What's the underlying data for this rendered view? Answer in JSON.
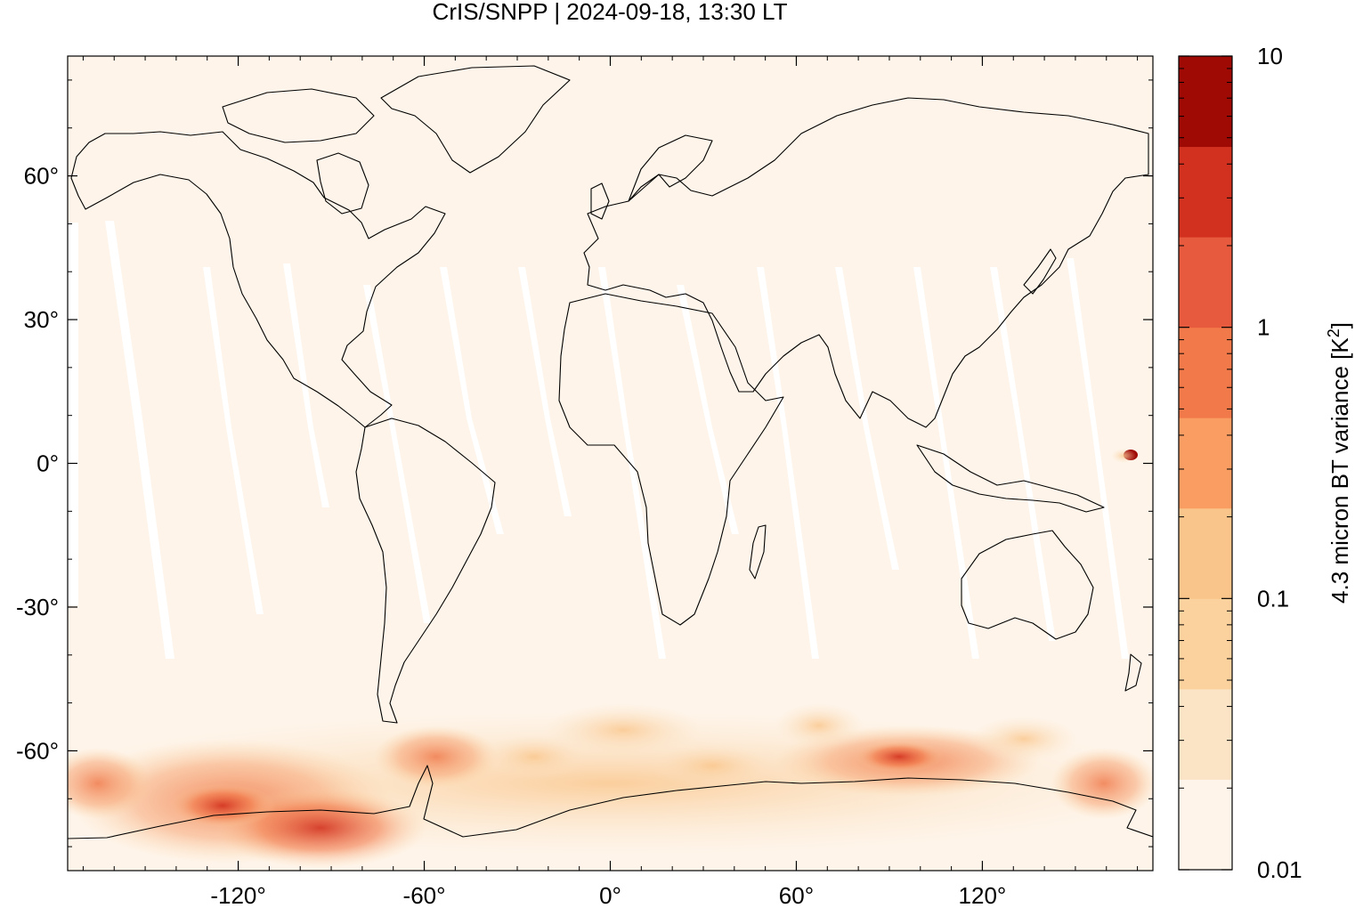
{
  "chart_data": {
    "type": "heatmap",
    "title": "CrIS/SNPP | 2024-09-18, 13:30 LT",
    "x_ticks": [
      "-120°",
      "-60°",
      "0°",
      "60°",
      "120°"
    ],
    "x_tick_values": [
      -120,
      -60,
      0,
      60,
      120
    ],
    "y_ticks": [
      "60°",
      "30°",
      "0°",
      "-30°",
      "-60°"
    ],
    "y_tick_values": [
      60,
      30,
      0,
      -30,
      -60
    ],
    "xlim": [
      -175,
      175
    ],
    "ylim": [
      -85,
      85
    ],
    "colorbar": {
      "label_prefix": "4.3 micron BT variance [K",
      "label_sup": "2",
      "label_suffix": "]",
      "scale": "log",
      "range": [
        0.01,
        10
      ],
      "tick_labels": [
        "10",
        "1",
        "0.1",
        "0.01"
      ],
      "tick_values": [
        10,
        1,
        0.1,
        0.01
      ],
      "colors": [
        "#fef4e9",
        "#fbe4c6",
        "#fbd29e",
        "#fac58a",
        "#fa9d62",
        "#f27a4a",
        "#e85a3e",
        "#d2311f",
        "#a00a05"
      ]
    },
    "features": {
      "background_level": 0.01,
      "swath_gaps": "white no-data strips between satellite swaths, tropics/mid-latitudes",
      "high_variance_regions": [
        {
          "region": "Southern Ocean / Antarctica coast, 140°W–80°W",
          "level": 1
        },
        {
          "region": "Southern Ocean, 70°E–130°E",
          "level": 0.5
        },
        {
          "region": "Drake Passage / Antarctic Peninsula",
          "level": 0.3
        },
        {
          "region": "Western Pacific near 170°E, 0°N",
          "level": 10
        }
      ]
    }
  }
}
